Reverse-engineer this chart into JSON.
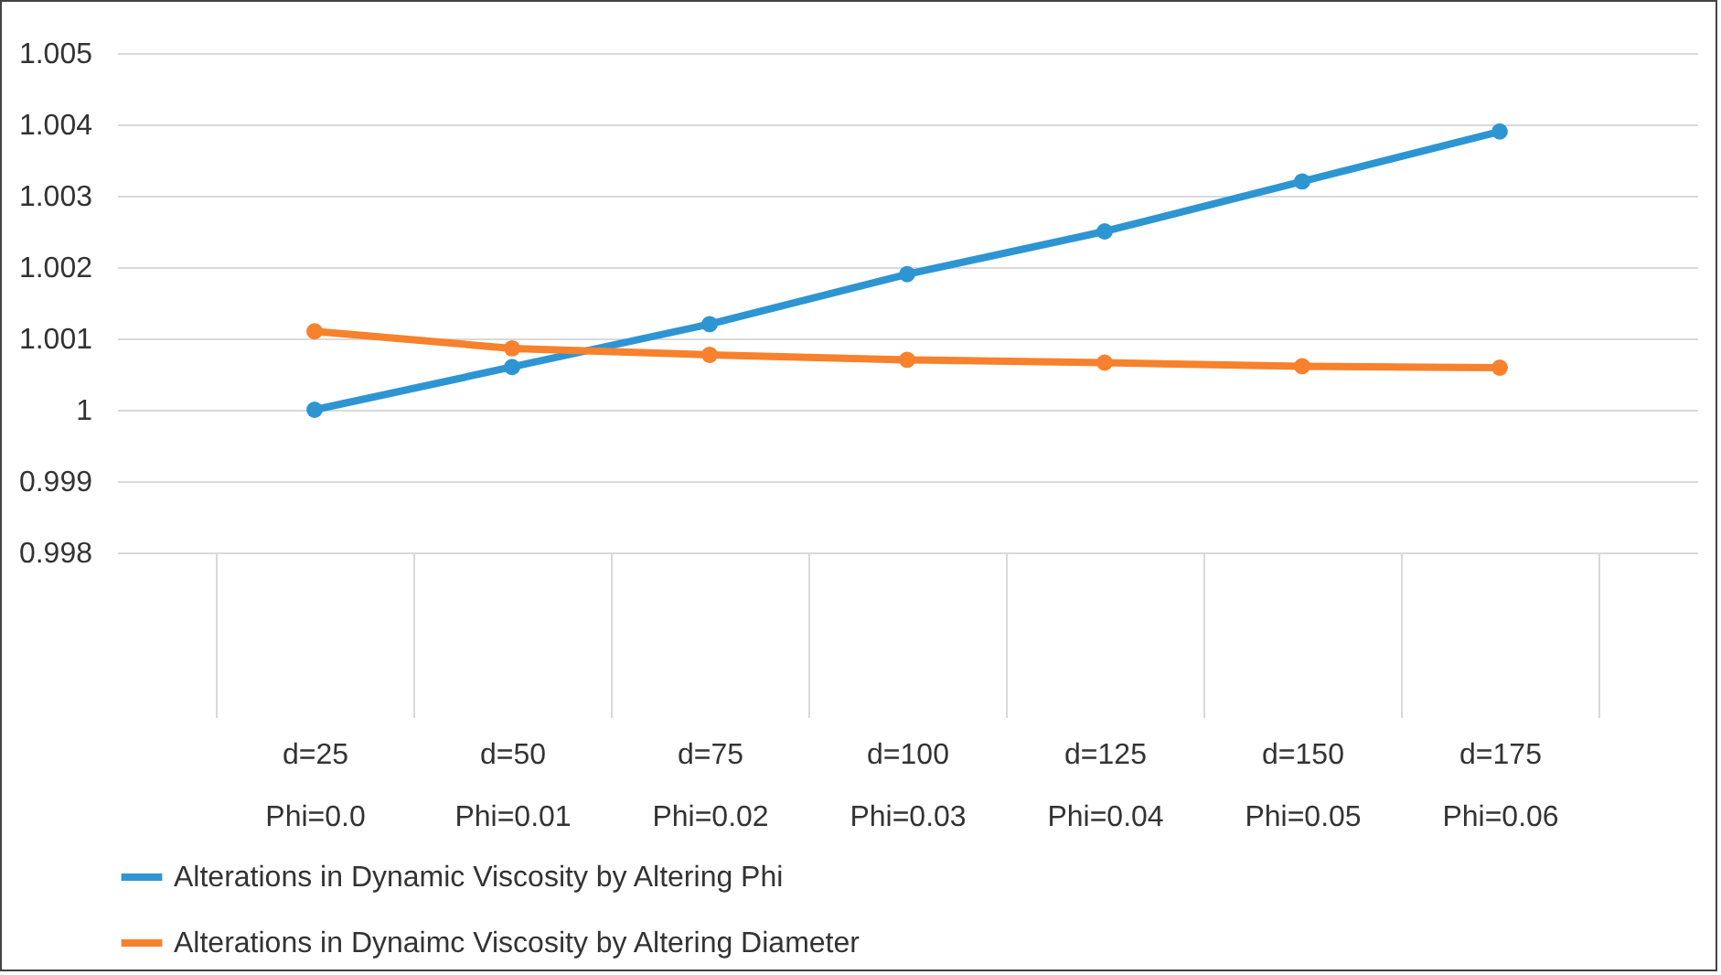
{
  "chart_data": {
    "type": "line",
    "categories": [
      "d=25\nPhi=0.0",
      "d=50\nPhi=0.01",
      "d=75\nPhi=0.02",
      "d=100\nPhi=0.03",
      "d=125\nPhi=0.04",
      "d=150\nPhi=0.05",
      "d=175\nPhi=0.06"
    ],
    "series": [
      {
        "name": "Alterations in Dynamic Viscosity by Altering Phi",
        "color": "#2e95d3",
        "values": [
          1.0,
          1.0006,
          1.0012,
          1.0019,
          1.0025,
          1.0032,
          1.0039
        ]
      },
      {
        "name": "Alterations in Dynaimc Viscosity by Altering Diameter",
        "color": "#f7812c",
        "values": [
          1.0011,
          1.00086,
          1.00077,
          1.0007,
          1.00066,
          1.00061,
          1.00059
        ]
      }
    ],
    "ylim": [
      0.998,
      1.005
    ],
    "yticks": [
      0.998,
      0.999,
      1,
      1.001,
      1.002,
      1.003,
      1.004,
      1.005
    ],
    "grid": "y",
    "legend": "bottom",
    "marker": "circle",
    "line_style": "solid"
  }
}
